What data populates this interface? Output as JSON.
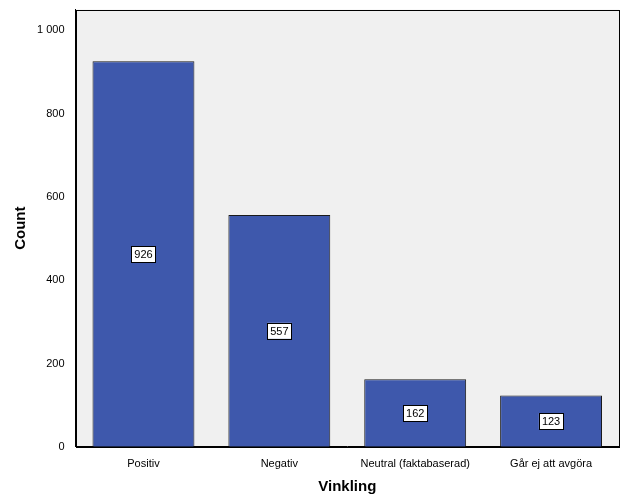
{
  "chart_data": {
    "type": "bar",
    "categories": [
      "Positiv",
      "Negativ",
      "Neutral (faktabaserad)",
      "Går ej att avgöra"
    ],
    "values": [
      926,
      557,
      162,
      123
    ],
    "color": "#3e58ac",
    "x_label": "Vinkling",
    "y_label": "Count",
    "ylim": [
      0,
      1050
    ],
    "yticks": [
      0,
      200,
      400,
      600,
      800,
      {
        "value": 1000,
        "label": "1 000"
      }
    ],
    "grid": false,
    "data_labels": true
  }
}
